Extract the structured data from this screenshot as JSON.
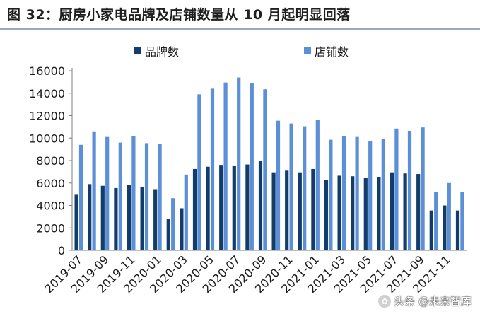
{
  "title": "图 32：厨房小家电品牌及店铺数量从 10 月起明显回落",
  "watermark": "头条 @未来智库",
  "colors": {
    "brand": "#123d6b",
    "store": "#5b8fd8",
    "title_rule": "#9aa9bd"
  },
  "chart_data": {
    "type": "bar",
    "title": "",
    "xlabel": "",
    "ylabel": "",
    "ylim": [
      0,
      16000
    ],
    "yticks": [
      0,
      2000,
      4000,
      6000,
      8000,
      10000,
      12000,
      14000,
      16000
    ],
    "grid": false,
    "legend_position": "top",
    "categories": [
      "2019-07",
      "2019-08",
      "2019-09",
      "2019-10",
      "2019-11",
      "2019-12",
      "2020-01",
      "2020-02",
      "2020-03",
      "2020-04",
      "2020-05",
      "2020-06",
      "2020-07",
      "2020-08",
      "2020-09",
      "2020-10",
      "2020-11",
      "2020-12",
      "2021-01",
      "2021-02",
      "2021-03",
      "2021-04",
      "2021-05",
      "2021-06",
      "2021-07",
      "2021-08",
      "2021-09",
      "2021-10",
      "2021-11",
      "2021-12"
    ],
    "tick_labels": [
      "2019-07",
      "2019-09",
      "2019-11",
      "2020-01",
      "2020-03",
      "2020-05",
      "2020-07",
      "2020-09",
      "2020-11",
      "2021-01",
      "2021-03",
      "2021-05",
      "2021-07",
      "2021-09",
      "2021-11"
    ],
    "series": [
      {
        "name": "品牌数",
        "color": "#123d6b",
        "values": [
          4950,
          5900,
          5750,
          5550,
          5850,
          5650,
          5450,
          2800,
          3750,
          7250,
          7450,
          7550,
          7500,
          7650,
          8000,
          6950,
          7100,
          6950,
          7250,
          6250,
          6650,
          6600,
          6450,
          6550,
          6950,
          6850,
          6800,
          3550,
          4000,
          3550
        ]
      },
      {
        "name": "店铺数",
        "color": "#5b8fd8",
        "values": [
          9400,
          10600,
          10100,
          9600,
          10150,
          9550,
          9450,
          4650,
          6750,
          13900,
          14400,
          14950,
          15400,
          14900,
          14350,
          11550,
          11300,
          11050,
          11600,
          9850,
          10150,
          10100,
          9700,
          9950,
          10850,
          10650,
          10950,
          5200,
          6000,
          5200
        ]
      }
    ]
  }
}
